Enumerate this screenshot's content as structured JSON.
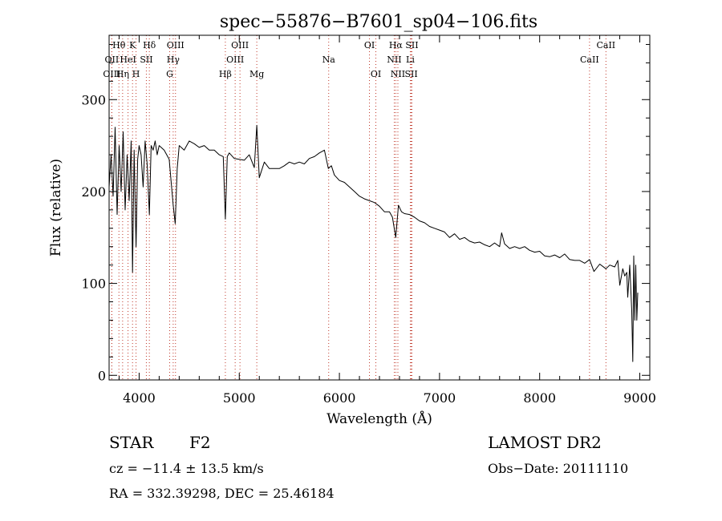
{
  "chart_data": {
    "type": "line",
    "title": "spec−55876−B7601_sp04−106.fits",
    "xlabel": "Wavelength (Å)",
    "ylabel": "Flux (relative)",
    "xlim": [
      3700,
      9100
    ],
    "ylim": [
      -5,
      370
    ],
    "xticks": [
      4000,
      5000,
      6000,
      7000,
      8000,
      9000
    ],
    "yticks": [
      0,
      100,
      200,
      300
    ],
    "grid": false,
    "series": [
      {
        "color": "#000000",
        "x": [
          3700,
          3720,
          3740,
          3760,
          3780,
          3800,
          3820,
          3840,
          3860,
          3880,
          3900,
          3920,
          3934,
          3950,
          3969,
          3985,
          4000,
          4020,
          4040,
          4060,
          4080,
          4102,
          4120,
          4140,
          4160,
          4180,
          4200,
          4250,
          4300,
          4340,
          4360,
          4380,
          4400,
          4450,
          4500,
          4550,
          4600,
          4650,
          4700,
          4750,
          4800,
          4840,
          4861,
          4880,
          4900,
          4950,
          5000,
          5050,
          5100,
          5150,
          5175,
          5200,
          5250,
          5300,
          5350,
          5400,
          5450,
          5500,
          5550,
          5600,
          5650,
          5700,
          5750,
          5800,
          5850,
          5890,
          5920,
          5950,
          6000,
          6050,
          6100,
          6150,
          6200,
          6250,
          6300,
          6350,
          6400,
          6450,
          6500,
          6530,
          6563,
          6590,
          6620,
          6650,
          6700,
          6750,
          6800,
          6850,
          6900,
          6950,
          7000,
          7050,
          7100,
          7150,
          7200,
          7250,
          7300,
          7350,
          7400,
          7450,
          7500,
          7550,
          7600,
          7620,
          7650,
          7700,
          7750,
          7800,
          7850,
          7900,
          7950,
          8000,
          8050,
          8100,
          8150,
          8200,
          8250,
          8300,
          8350,
          8400,
          8450,
          8498,
          8542,
          8600,
          8662,
          8700,
          8750,
          8780,
          8800,
          8830,
          8850,
          8870,
          8880,
          8900,
          8920,
          8930,
          8940,
          8950,
          8960,
          8970,
          8980
        ],
        "y": [
          205,
          240,
          195,
          270,
          175,
          250,
          200,
          265,
          180,
          240,
          190,
          255,
          112,
          245,
          140,
          235,
          250,
          240,
          205,
          255,
          230,
          175,
          250,
          245,
          255,
          240,
          250,
          245,
          235,
          185,
          165,
          225,
          250,
          245,
          255,
          252,
          248,
          250,
          245,
          245,
          240,
          238,
          170,
          238,
          242,
          236,
          235,
          234,
          240,
          226,
          272,
          215,
          232,
          225,
          225,
          225,
          228,
          232,
          230,
          232,
          230,
          236,
          238,
          242,
          245,
          225,
          228,
          218,
          212,
          210,
          205,
          200,
          195,
          192,
          190,
          188,
          184,
          178,
          178,
          172,
          150,
          185,
          178,
          176,
          175,
          172,
          168,
          166,
          162,
          160,
          158,
          156,
          150,
          154,
          148,
          150,
          146,
          144,
          145,
          142,
          140,
          144,
          140,
          155,
          143,
          138,
          140,
          138,
          140,
          136,
          134,
          135,
          130,
          129,
          131,
          128,
          132,
          126,
          125,
          125,
          122,
          126,
          113,
          121,
          116,
          120,
          118,
          125,
          98,
          116,
          108,
          112,
          85,
          120,
          70,
          15,
          130,
          60,
          120,
          60,
          90
        ]
      }
    ],
    "lines": [
      {
        "label": "Hθ",
        "x": 3798,
        "row": 1
      },
      {
        "label": "OII",
        "x": 3727,
        "row": 2
      },
      {
        "label": "OIII",
        "x": 3727,
        "row": 3
      },
      {
        "label": "K",
        "x": 3934,
        "row": 1
      },
      {
        "label": "HeI",
        "x": 3889,
        "row": 2
      },
      {
        "label": "Hη",
        "x": 3835,
        "row": 3
      },
      {
        "label": "SII",
        "x": 4072,
        "row": 2
      },
      {
        "label": "H",
        "x": 3969,
        "row": 3
      },
      {
        "label": "Hδ",
        "x": 4102,
        "row": 1
      },
      {
        "label": "OIII",
        "x": 4363,
        "row": 1
      },
      {
        "label": "Hγ",
        "x": 4340,
        "row": 2
      },
      {
        "label": "G",
        "x": 4305,
        "row": 3
      },
      {
        "label": "OIII",
        "x": 5007,
        "row": 1
      },
      {
        "label": "OIII",
        "x": 4959,
        "row": 2
      },
      {
        "label": "Hβ",
        "x": 4861,
        "row": 3
      },
      {
        "label": "Mg",
        "x": 5175,
        "row": 3
      },
      {
        "label": "Na",
        "x": 5893,
        "row": 2
      },
      {
        "label": "OI",
        "x": 6300,
        "row": 1
      },
      {
        "label": "OI",
        "x": 6364,
        "row": 3
      },
      {
        "label": "Hα",
        "x": 6563,
        "row": 1
      },
      {
        "label": "SII",
        "x": 6724,
        "row": 1
      },
      {
        "label": "NII",
        "x": 6548,
        "row": 2
      },
      {
        "label": "Li",
        "x": 6708,
        "row": 2
      },
      {
        "label": "NII",
        "x": 6584,
        "row": 3
      },
      {
        "label": "SII",
        "x": 6717,
        "row": 3
      },
      {
        "label": "CaII",
        "x": 8662,
        "row": 1
      },
      {
        "label": "CaII",
        "x": 8498,
        "row": 2
      }
    ]
  },
  "info": {
    "object_type": "STAR",
    "subclass": "F2",
    "survey": "LAMOST DR2",
    "velocity": "cz = −11.4 ± 13.5 km/s",
    "obs_date": "Obs−Date: 20111110",
    "coords": "RA = 332.39298, DEC =  25.46184"
  }
}
